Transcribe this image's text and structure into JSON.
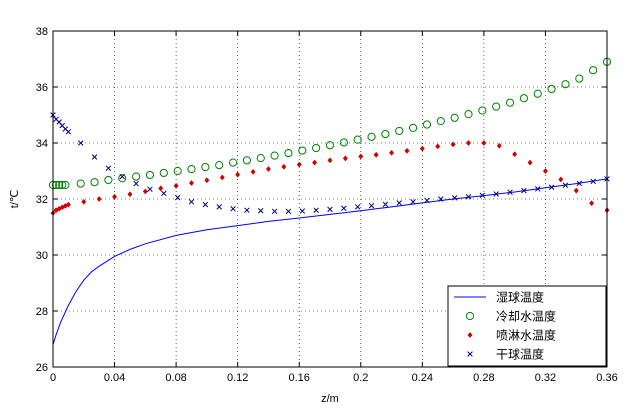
{
  "chart_data": {
    "type": "line",
    "title": "",
    "xlabel": "z/m",
    "ylabel": "t/℃",
    "xlim": [
      0,
      0.36
    ],
    "ylim": [
      26,
      38
    ],
    "xticks": [
      0,
      0.04,
      0.08,
      0.12,
      0.16,
      0.2,
      0.24,
      0.28,
      0.32,
      0.36
    ],
    "xtick_labels": [
      "0",
      "0.04",
      "0.08",
      "0.12",
      "0.16",
      "0.2",
      "0.24",
      "0.28",
      "0.32",
      "0.36"
    ],
    "yticks": [
      26,
      28,
      30,
      32,
      34,
      36,
      38
    ],
    "ytick_labels": [
      "26",
      "28",
      "30",
      "32",
      "34",
      "36",
      "38"
    ],
    "grid": true,
    "legend_position": "bottom-right",
    "series": [
      {
        "name": "湿球温度",
        "marker": "line",
        "color": "#0000ff",
        "x": [
          0,
          0.002,
          0.005,
          0.01,
          0.015,
          0.02,
          0.025,
          0.03,
          0.04,
          0.05,
          0.06,
          0.08,
          0.1,
          0.12,
          0.14,
          0.16,
          0.18,
          0.2,
          0.22,
          0.24,
          0.26,
          0.28,
          0.3,
          0.32,
          0.34,
          0.36
        ],
        "y": [
          26.8,
          27.15,
          27.6,
          28.2,
          28.7,
          29.1,
          29.4,
          29.6,
          29.95,
          30.2,
          30.4,
          30.7,
          30.9,
          31.05,
          31.2,
          31.32,
          31.45,
          31.58,
          31.72,
          31.86,
          32.0,
          32.12,
          32.25,
          32.4,
          32.55,
          32.72
        ]
      },
      {
        "name": "冷却水温度",
        "marker": "circle",
        "color": "#008000",
        "x": [
          0.0,
          0.002,
          0.004,
          0.006,
          0.008,
          0.018,
          0.027,
          0.036,
          0.045,
          0.054,
          0.063,
          0.072,
          0.081,
          0.09,
          0.099,
          0.108,
          0.117,
          0.126,
          0.135,
          0.144,
          0.153,
          0.162,
          0.171,
          0.18,
          0.189,
          0.198,
          0.207,
          0.216,
          0.225,
          0.234,
          0.243,
          0.252,
          0.261,
          0.27,
          0.279,
          0.288,
          0.297,
          0.306,
          0.315,
          0.324,
          0.333,
          0.342,
          0.351,
          0.36
        ],
        "y": [
          32.5,
          32.5,
          32.5,
          32.5,
          32.5,
          32.55,
          32.6,
          32.68,
          32.74,
          32.8,
          32.86,
          32.93,
          33.0,
          33.07,
          33.14,
          33.21,
          33.3,
          33.38,
          33.46,
          33.55,
          33.64,
          33.73,
          33.82,
          33.92,
          34.02,
          34.12,
          34.22,
          34.32,
          34.43,
          34.54,
          34.66,
          34.78,
          34.9,
          35.03,
          35.16,
          35.3,
          35.44,
          35.6,
          35.76,
          35.93,
          36.1,
          36.3,
          36.6,
          36.9
        ]
      },
      {
        "name": "喷淋水温度",
        "marker": "diamond",
        "color": "#cc0000",
        "x": [
          0.0,
          0.002,
          0.004,
          0.006,
          0.008,
          0.01,
          0.02,
          0.03,
          0.04,
          0.05,
          0.06,
          0.07,
          0.08,
          0.09,
          0.1,
          0.11,
          0.12,
          0.13,
          0.14,
          0.15,
          0.16,
          0.17,
          0.18,
          0.19,
          0.2,
          0.21,
          0.22,
          0.23,
          0.24,
          0.25,
          0.26,
          0.27,
          0.28,
          0.29,
          0.3,
          0.31,
          0.32,
          0.33,
          0.34,
          0.35,
          0.36
        ],
        "y": [
          31.5,
          31.6,
          31.65,
          31.7,
          31.75,
          31.8,
          31.9,
          32.0,
          32.08,
          32.17,
          32.27,
          32.38,
          32.47,
          32.57,
          32.67,
          32.77,
          32.87,
          32.97,
          33.07,
          33.15,
          33.23,
          33.3,
          33.38,
          33.45,
          33.52,
          33.58,
          33.65,
          33.72,
          33.8,
          33.88,
          33.95,
          34.0,
          34.0,
          33.9,
          33.6,
          33.3,
          33.0,
          32.7,
          32.3,
          31.85,
          31.6
        ]
      },
      {
        "name": "干球温度",
        "marker": "x",
        "color": "#000080",
        "x": [
          0.0,
          0.002,
          0.004,
          0.006,
          0.008,
          0.01,
          0.018,
          0.027,
          0.036,
          0.045,
          0.054,
          0.063,
          0.072,
          0.081,
          0.09,
          0.099,
          0.108,
          0.117,
          0.126,
          0.135,
          0.144,
          0.153,
          0.162,
          0.171,
          0.18,
          0.189,
          0.198,
          0.207,
          0.216,
          0.225,
          0.234,
          0.243,
          0.252,
          0.261,
          0.27,
          0.279,
          0.288,
          0.297,
          0.306,
          0.315,
          0.324,
          0.333,
          0.342,
          0.351,
          0.36
        ],
        "y": [
          35.0,
          34.85,
          34.75,
          34.62,
          34.5,
          34.4,
          34.0,
          33.5,
          33.1,
          32.8,
          32.55,
          32.35,
          32.2,
          32.05,
          31.9,
          31.8,
          31.72,
          31.65,
          31.6,
          31.58,
          31.56,
          31.56,
          31.57,
          31.6,
          31.63,
          31.67,
          31.72,
          31.76,
          31.81,
          31.86,
          31.9,
          31.95,
          32.0,
          32.04,
          32.08,
          32.13,
          32.18,
          32.24,
          32.3,
          32.36,
          32.42,
          32.49,
          32.56,
          32.63,
          32.72
        ]
      }
    ]
  }
}
